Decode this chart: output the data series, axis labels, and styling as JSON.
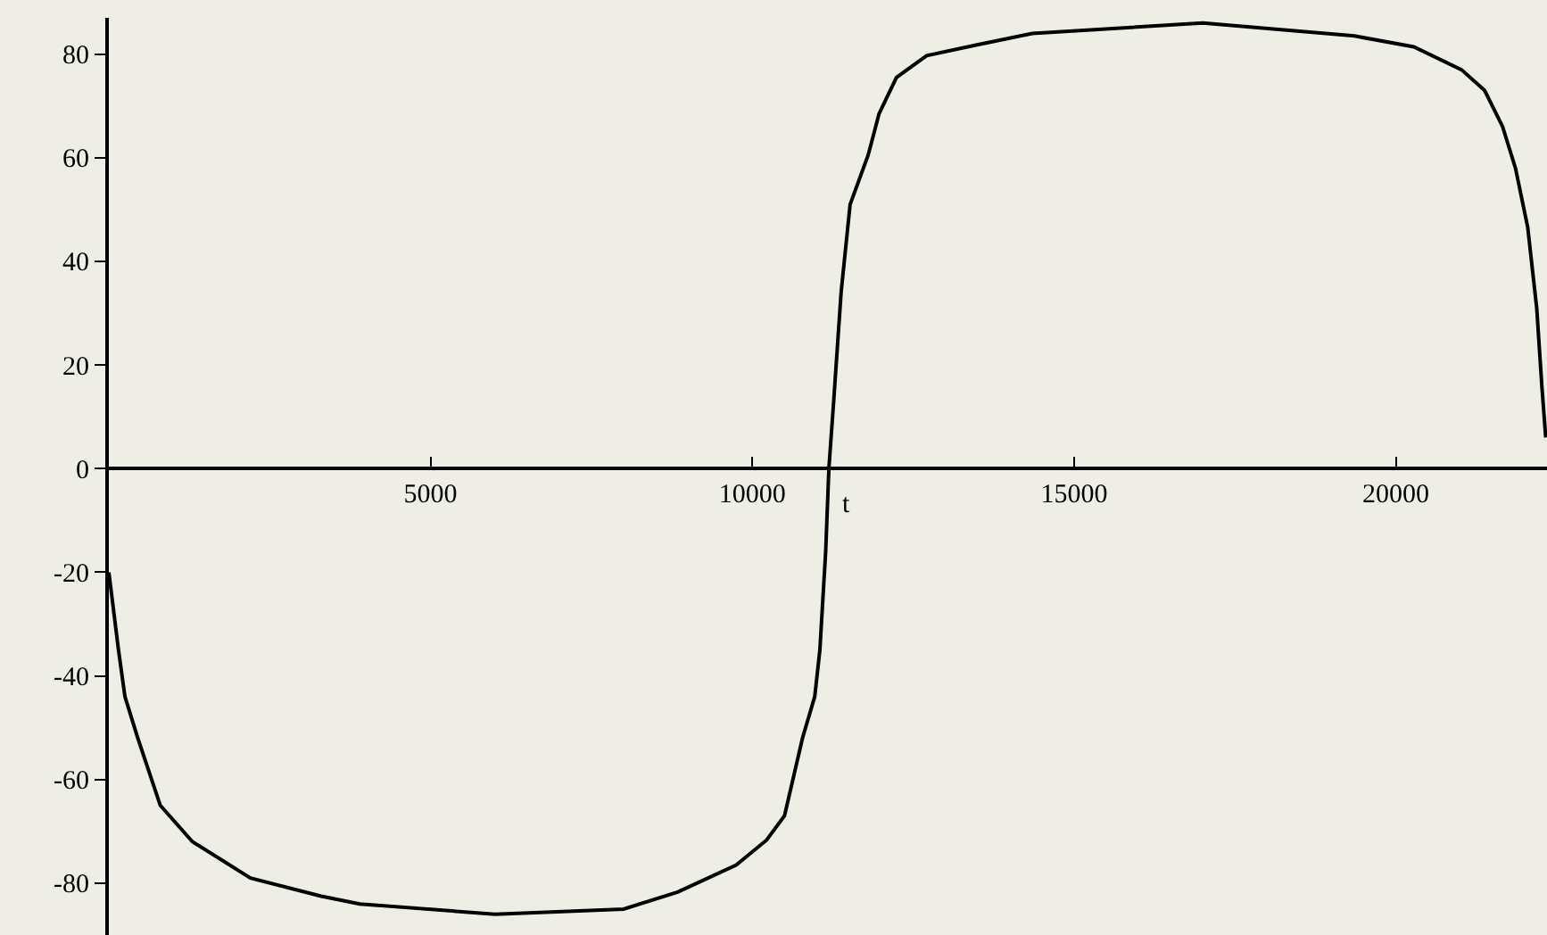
{
  "chart_data": {
    "type": "line",
    "xlabel": "t",
    "color": "#000000",
    "x": [
      0,
      150,
      250,
      450,
      800,
      1300,
      2200,
      3300,
      3900,
      6000,
      8000,
      8840,
      9750,
      10220,
      10500,
      10780,
      10970,
      11050,
      11140,
      11190,
      11270,
      11380,
      11520,
      11800,
      11970,
      12240,
      12710,
      13460,
      14350,
      17000,
      19360,
      20280,
      21020,
      21380,
      21660,
      21860,
      22050,
      22190,
      22270,
      22330
    ],
    "values": [
      -20,
      -35,
      -44,
      -52,
      -65,
      -72,
      -79,
      -82.5,
      -84,
      -86,
      -85,
      -81.7,
      -76.5,
      -71.7,
      -67,
      -52,
      -44,
      -35,
      -16,
      0,
      14,
      34,
      51,
      60.5,
      68.5,
      75.5,
      79.7,
      81.7,
      84,
      86,
      83.5,
      81.4,
      77,
      73,
      66,
      58,
      46.6,
      31,
      16,
      6
    ],
    "xlim": [
      0,
      22350
    ],
    "ylim": [
      -90,
      87
    ],
    "xticks": [
      5000,
      10000,
      15000,
      20000
    ],
    "yticks": [
      -80,
      -60,
      -40,
      -20,
      0,
      20,
      40,
      60,
      80
    ],
    "grid": false,
    "line_style": "solid",
    "marker": "none"
  }
}
